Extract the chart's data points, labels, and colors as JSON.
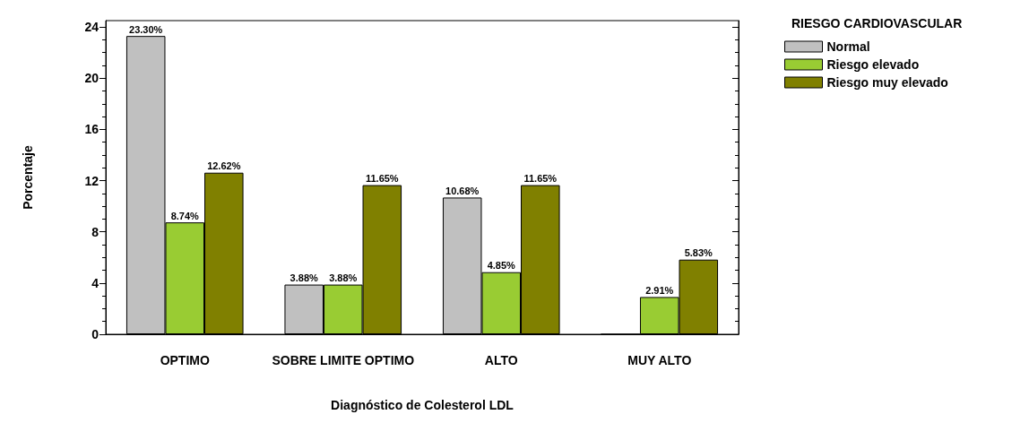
{
  "chart_data": {
    "type": "bar",
    "xlabel": "Diagnóstico de Colesterol LDL",
    "ylabel": "Porcentaje",
    "legend_title": "RIESGO CARDIOVASCULAR",
    "legend": "top right",
    "categories": [
      "OPTIMO",
      "SOBRE LIMITE OPTIMO",
      "ALTO",
      "MUY ALTO"
    ],
    "ylim": [
      0,
      24.5
    ],
    "yticks": [
      0,
      4,
      8,
      12,
      16,
      20,
      24
    ],
    "series": [
      {
        "name": "Normal",
        "color": "#c0c0c0",
        "values": [
          23.3,
          3.88,
          10.68,
          0
        ],
        "value_labels": [
          "23.30%",
          "3.88%",
          "10.68%",
          null
        ]
      },
      {
        "name": "Riesgo elevado",
        "color": "#99cc33",
        "values": [
          8.74,
          3.88,
          4.85,
          2.91
        ],
        "value_labels": [
          "8.74%",
          "3.88%",
          "4.85%",
          "2.91%"
        ]
      },
      {
        "name": "Riesgo muy elevado",
        "color": "#808000",
        "values": [
          12.62,
          11.65,
          11.65,
          5.83
        ],
        "value_labels": [
          "12.62%",
          "11.65%",
          "11.65%",
          "5.83%"
        ]
      }
    ]
  }
}
